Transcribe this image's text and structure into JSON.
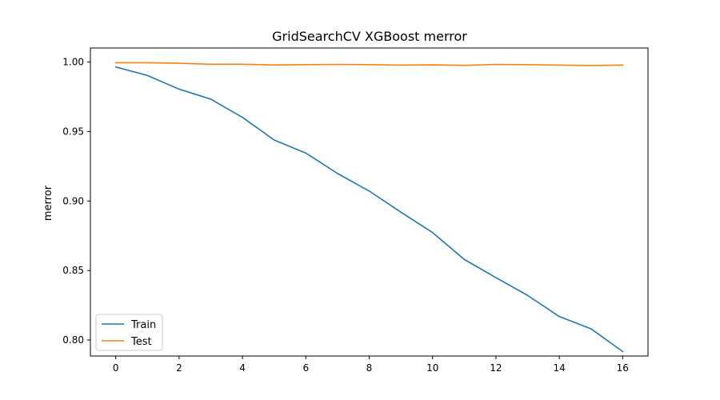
{
  "chart_data": {
    "type": "line",
    "title": "GridSearchCV XGBoost merror",
    "xlabel": "",
    "ylabel": "merror",
    "x": [
      0,
      1,
      2,
      3,
      4,
      5,
      6,
      7,
      8,
      9,
      10,
      11,
      12,
      13,
      14,
      15,
      16
    ],
    "xlim": [
      -0.8,
      16.8
    ],
    "ylim": [
      0.7885,
      1.0101
    ],
    "xticks": [
      0,
      2,
      4,
      6,
      8,
      10,
      12,
      14,
      16
    ],
    "xtick_labels": [
      "0",
      "2",
      "4",
      "6",
      "8",
      "10",
      "12",
      "14",
      "16"
    ],
    "yticks": [
      0.8,
      0.85,
      0.9,
      0.95,
      1.0
    ],
    "ytick_labels": [
      "0.80",
      "0.85",
      "0.90",
      "0.95",
      "1.00"
    ],
    "grid": false,
    "legend_position": "lower-left",
    "series": [
      {
        "name": "Train",
        "color": "#1f77b4",
        "values": [
          0.9965,
          0.9903,
          0.9805,
          0.9733,
          0.9602,
          0.9439,
          0.9345,
          0.9198,
          0.9072,
          0.892,
          0.8773,
          0.858,
          0.8449,
          0.8321,
          0.8169,
          0.8081,
          0.7917
        ]
      },
      {
        "name": "Test",
        "color": "#ff7f0e",
        "values": [
          0.9995,
          0.9995,
          0.9991,
          0.9984,
          0.9984,
          0.9979,
          0.9981,
          0.9983,
          0.9981,
          0.9978,
          0.998,
          0.9976,
          0.9983,
          0.9981,
          0.9978,
          0.9975,
          0.9978
        ]
      }
    ]
  }
}
